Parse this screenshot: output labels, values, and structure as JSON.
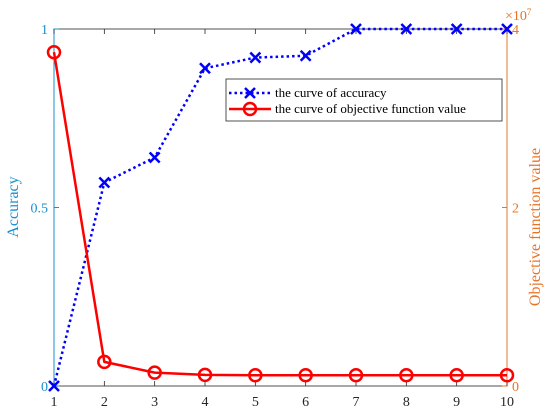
{
  "chart_data": {
    "type": "line",
    "x": [
      1,
      2,
      3,
      4,
      5,
      6,
      7,
      8,
      9,
      10
    ],
    "xlim": [
      1,
      10
    ],
    "xticks": [
      "1",
      "2",
      "3",
      "4",
      "5",
      "6",
      "7",
      "8",
      "9",
      "10"
    ],
    "left_axis": {
      "label": "Accuracy",
      "ylim": [
        0,
        1
      ],
      "ticks": [
        0,
        0.5,
        1
      ],
      "tick_labels": [
        "0",
        "0.5",
        "1"
      ],
      "color": "#1a8fcf"
    },
    "right_axis": {
      "label": "Objective function value",
      "ylim": [
        0,
        4
      ],
      "ticks": [
        0,
        2,
        4
      ],
      "tick_labels": [
        "0",
        "2",
        "4"
      ],
      "exponent_label": "×10^7",
      "color": "#e8742a"
    },
    "series": [
      {
        "name": "the curve of accuracy",
        "axis": "left",
        "values": [
          0.0,
          0.57,
          0.64,
          0.89,
          0.92,
          0.925,
          1.0,
          1.0,
          1.0,
          1.0
        ],
        "color": "#0000ff",
        "line_style": "dotted",
        "marker": "x"
      },
      {
        "name": "the curve of objective function value",
        "axis": "right",
        "values": [
          3.74,
          0.27,
          0.15,
          0.125,
          0.12,
          0.12,
          0.12,
          0.12,
          0.12,
          0.12
        ],
        "color": "#ff0000",
        "line_style": "solid",
        "marker": "circle"
      }
    ],
    "grid": false,
    "legend_position": "top-right"
  }
}
